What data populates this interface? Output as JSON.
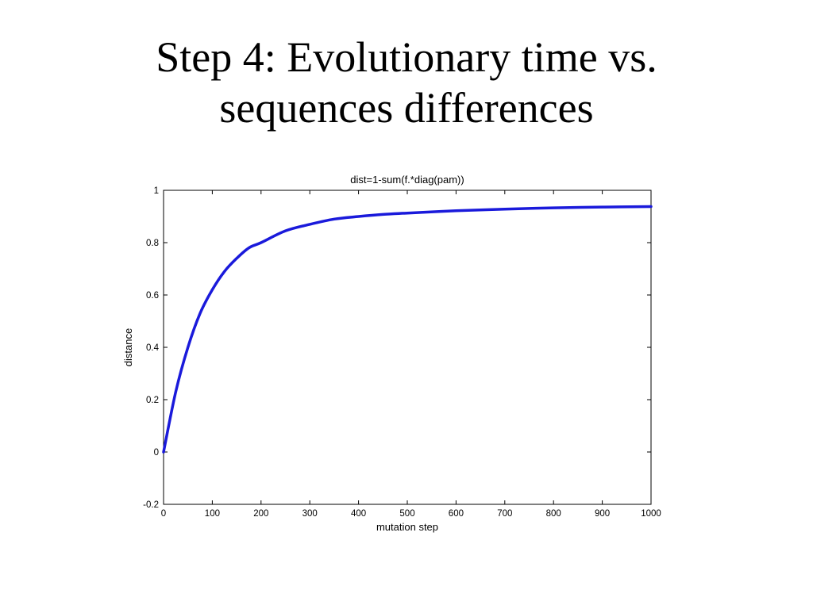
{
  "slide": {
    "title_line1": "Step 4: Evolutionary time vs.",
    "title_line2": "sequences differences"
  },
  "chart_data": {
    "type": "line",
    "title": "dist=1-sum(f.*diag(pam))",
    "xlabel": "mutation step",
    "ylabel": "distance",
    "xlim": [
      0,
      1000
    ],
    "ylim": [
      -0.2,
      1
    ],
    "xticks": [
      0,
      100,
      200,
      300,
      400,
      500,
      600,
      700,
      800,
      900,
      1000
    ],
    "xtick_labels": [
      "0",
      "100",
      "200",
      "300",
      "400",
      "500",
      "600",
      "700",
      "800",
      "900",
      "1000"
    ],
    "yticks": [
      -0.2,
      0,
      0.2,
      0.4,
      0.6,
      0.8,
      1
    ],
    "ytick_labels": [
      "-0.2",
      "0",
      "0.2",
      "0.4",
      "0.6",
      "0.8",
      "1"
    ],
    "grid": false,
    "line_color": "#1a1adb",
    "series": [
      {
        "x": [
          0,
          25,
          50,
          75,
          100,
          125,
          150,
          175,
          200,
          250,
          300,
          350,
          400,
          450,
          500,
          600,
          700,
          800,
          900,
          1000
        ],
        "values": [
          0.0,
          0.23,
          0.4,
          0.53,
          0.62,
          0.69,
          0.74,
          0.78,
          0.8,
          0.845,
          0.87,
          0.89,
          0.9,
          0.908,
          0.913,
          0.922,
          0.928,
          0.933,
          0.936,
          0.938
        ]
      }
    ]
  }
}
